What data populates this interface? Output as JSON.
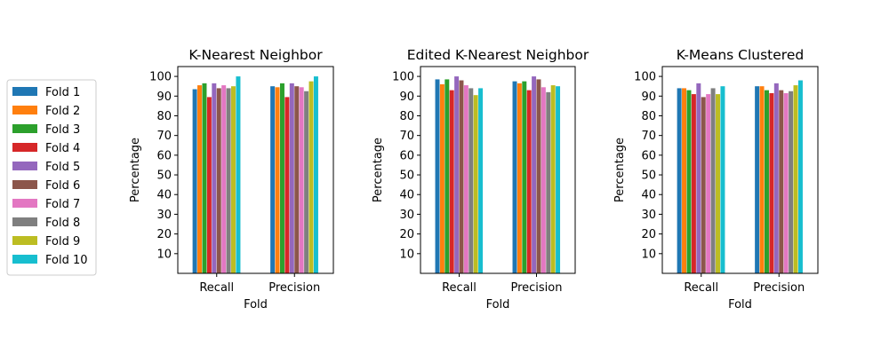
{
  "legend": {
    "placement": "left",
    "entries": [
      "Fold 1",
      "Fold 2",
      "Fold 3",
      "Fold 4",
      "Fold 5",
      "Fold 6",
      "Fold 7",
      "Fold 8",
      "Fold 9",
      "Fold 10"
    ]
  },
  "colors": [
    "#1f77b4",
    "#ff7f0e",
    "#2ca02c",
    "#d62728",
    "#9467bd",
    "#8c564b",
    "#e377c2",
    "#7f7f7f",
    "#bcbd22",
    "#17becf"
  ],
  "chart_data": [
    {
      "type": "bar",
      "title": "K-Nearest Neighbor",
      "xlabel": "Fold",
      "ylabel": "Percentage",
      "categories": [
        "Recall",
        "Precision"
      ],
      "ylim": [
        0,
        105
      ],
      "yticks": [
        10,
        20,
        30,
        40,
        50,
        60,
        70,
        80,
        90,
        100
      ],
      "grid": false,
      "series": [
        {
          "name": "Fold 1",
          "values": [
            93.5,
            95.0
          ]
        },
        {
          "name": "Fold 2",
          "values": [
            95.5,
            94.5
          ]
        },
        {
          "name": "Fold 3",
          "values": [
            96.5,
            96.5
          ]
        },
        {
          "name": "Fold 4",
          "values": [
            89.5,
            89.5
          ]
        },
        {
          "name": "Fold 5",
          "values": [
            96.5,
            96.5
          ]
        },
        {
          "name": "Fold 6",
          "values": [
            94.0,
            95.0
          ]
        },
        {
          "name": "Fold 7",
          "values": [
            95.5,
            94.5
          ]
        },
        {
          "name": "Fold 8",
          "values": [
            94.0,
            92.5
          ]
        },
        {
          "name": "Fold 9",
          "values": [
            95.0,
            97.5
          ]
        },
        {
          "name": "Fold 10",
          "values": [
            100.0,
            100.0
          ]
        }
      ]
    },
    {
      "type": "bar",
      "title": "Edited K-Nearest Neighbor",
      "xlabel": "Fold",
      "ylabel": "Percentage",
      "categories": [
        "Recall",
        "Precision"
      ],
      "ylim": [
        0,
        105
      ],
      "yticks": [
        10,
        20,
        30,
        40,
        50,
        60,
        70,
        80,
        90,
        100
      ],
      "grid": false,
      "series": [
        {
          "name": "Fold 1",
          "values": [
            98.5,
            97.5
          ]
        },
        {
          "name": "Fold 2",
          "values": [
            96.0,
            96.5
          ]
        },
        {
          "name": "Fold 3",
          "values": [
            98.5,
            97.5
          ]
        },
        {
          "name": "Fold 4",
          "values": [
            93.0,
            93.0
          ]
        },
        {
          "name": "Fold 5",
          "values": [
            100.0,
            100.0
          ]
        },
        {
          "name": "Fold 6",
          "values": [
            98.0,
            98.5
          ]
        },
        {
          "name": "Fold 7",
          "values": [
            95.5,
            94.5
          ]
        },
        {
          "name": "Fold 8",
          "values": [
            94.0,
            92.0
          ]
        },
        {
          "name": "Fold 9",
          "values": [
            90.5,
            95.5
          ]
        },
        {
          "name": "Fold 10",
          "values": [
            94.0,
            95.0
          ]
        }
      ]
    },
    {
      "type": "bar",
      "title": "K-Means Clustered",
      "xlabel": "Fold",
      "ylabel": "Percentage",
      "categories": [
        "Recall",
        "Precision"
      ],
      "ylim": [
        0,
        105
      ],
      "yticks": [
        10,
        20,
        30,
        40,
        50,
        60,
        70,
        80,
        90,
        100
      ],
      "grid": false,
      "series": [
        {
          "name": "Fold 1",
          "values": [
            94.0,
            95.0
          ]
        },
        {
          "name": "Fold 2",
          "values": [
            94.0,
            95.0
          ]
        },
        {
          "name": "Fold 3",
          "values": [
            93.0,
            93.0
          ]
        },
        {
          "name": "Fold 4",
          "values": [
            91.0,
            91.5
          ]
        },
        {
          "name": "Fold 5",
          "values": [
            96.5,
            96.5
          ]
        },
        {
          "name": "Fold 6",
          "values": [
            89.5,
            93.0
          ]
        },
        {
          "name": "Fold 7",
          "values": [
            91.0,
            91.5
          ]
        },
        {
          "name": "Fold 8",
          "values": [
            94.0,
            92.5
          ]
        },
        {
          "name": "Fold 9",
          "values": [
            91.0,
            95.5
          ]
        },
        {
          "name": "Fold 10",
          "values": [
            95.0,
            98.0
          ]
        }
      ]
    }
  ]
}
